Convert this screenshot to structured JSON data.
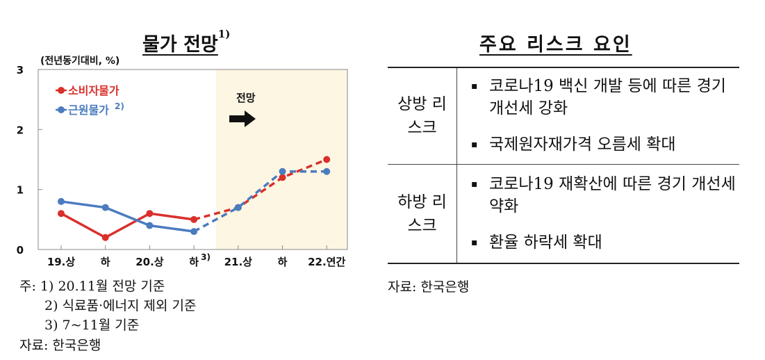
{
  "left_title": "물가 전망",
  "left_title_sup": "1)",
  "chart_data": {
    "type": "line",
    "ylabel": "(전년동기대비, %)",
    "ylim": [
      0,
      3
    ],
    "yticks": [
      "0",
      "1",
      "2",
      "3"
    ],
    "categories": [
      "19.상",
      "하",
      "20.상",
      "하",
      "21.상",
      "하",
      "22.연간"
    ],
    "category_note_index": 3,
    "category_note": "3)",
    "forecast_start_index": 4,
    "forecast_label": "전망",
    "forecast_shade_color": "#fdf6e3",
    "grid": false,
    "legend_placement": "top-left",
    "series": [
      {
        "name": "소비자물가",
        "name_sup": "",
        "color": "#d9302c",
        "values": [
          0.6,
          0.2,
          0.6,
          0.5,
          0.7,
          1.2,
          1.5
        ]
      },
      {
        "name": "근원물가",
        "name_sup": "2)",
        "color": "#4a7cbf",
        "values": [
          0.8,
          0.7,
          0.4,
          0.3,
          0.7,
          1.3,
          1.3
        ]
      }
    ]
  },
  "notes": [
    "주: 1) 20.11월 전망 기준",
    "2) 식료품·에너지 제외 기준",
    "3) 7~11월 기준"
  ],
  "left_source": "자료: 한국은행",
  "right_title": "주요 리스크 요인",
  "risks": {
    "upside": {
      "label": "상방 리스크",
      "items": [
        "코로나19 백신 개발 등에 따른 경기 개선세 강화",
        "국제원자재가격 오름세 확대"
      ]
    },
    "downside": {
      "label": "하방 리스크",
      "items": [
        "코로나19 재확산에 따른 경기 개선세 약화",
        "환율 하락세 확대"
      ]
    }
  },
  "right_source": "자료: 한국은행"
}
